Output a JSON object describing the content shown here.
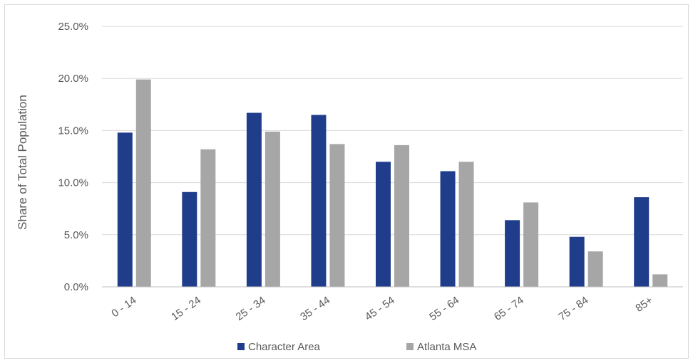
{
  "chart_data": {
    "type": "bar",
    "title": "",
    "xlabel": "",
    "ylabel": "Share of Total Population",
    "categories": [
      "0 - 14",
      "15 - 24",
      "25 - 34",
      "35 - 44",
      "45 - 54",
      "55 - 64",
      "65 - 74",
      "75 - 84",
      "85+"
    ],
    "series": [
      {
        "name": "Character Area",
        "color": "#203D8C",
        "values": [
          14.8,
          9.1,
          16.7,
          16.5,
          12.0,
          11.1,
          6.4,
          4.8,
          8.6
        ]
      },
      {
        "name": "Atlanta MSA",
        "color": "#A6A6A6",
        "values": [
          19.9,
          13.2,
          14.9,
          13.7,
          13.6,
          12.0,
          8.1,
          3.4,
          1.2
        ]
      }
    ],
    "ylim": [
      0,
      25
    ],
    "yticks": [
      "0.0%",
      "5.0%",
      "10.0%",
      "15.0%",
      "20.0%",
      "25.0%"
    ],
    "grid": true,
    "legend_position": "bottom"
  }
}
